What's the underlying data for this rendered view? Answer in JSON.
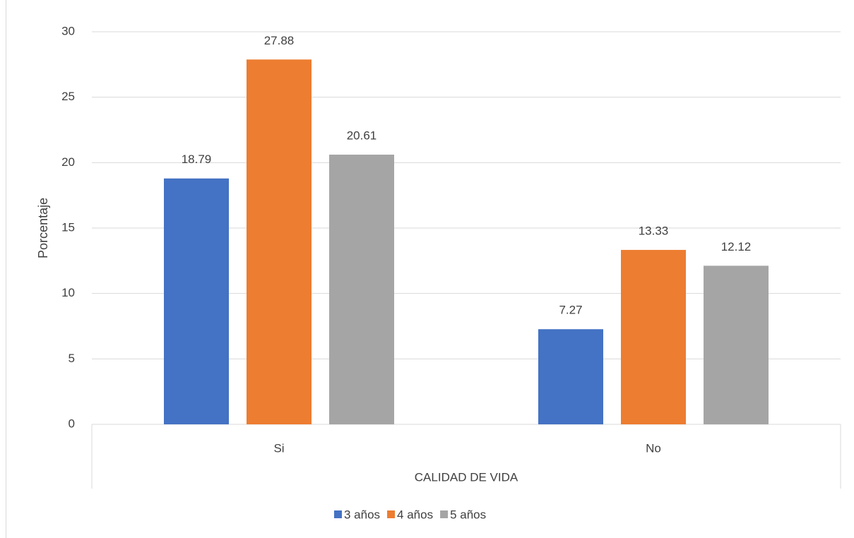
{
  "chart_data": {
    "type": "bar",
    "categories": [
      "Si",
      "No"
    ],
    "x_label": "CALIDAD DE VIDA",
    "y_label": "Porcentaje",
    "series": [
      {
        "name": "3 años",
        "color": "#4472c4",
        "values": [
          18.79,
          7.27
        ]
      },
      {
        "name": "4 años",
        "color": "#ed7d31",
        "values": [
          27.88,
          13.33
        ]
      },
      {
        "name": "5 años",
        "color": "#a5a5a5",
        "values": [
          20.61,
          12.12
        ]
      }
    ],
    "ylim": [
      0,
      30
    ],
    "yticks": [
      0,
      5,
      10,
      15,
      20,
      25,
      30
    ],
    "grid": true,
    "legend": "bottom"
  }
}
